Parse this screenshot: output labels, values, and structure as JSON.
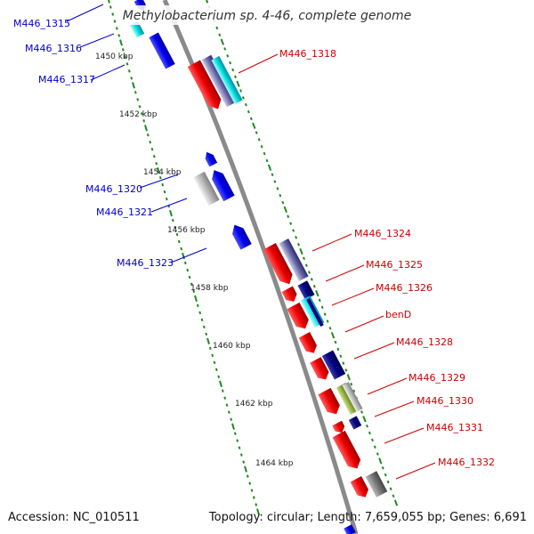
{
  "title": "Methylobacterium sp. 4-46, complete genome",
  "footer": {
    "accession": "Accession: NC_010511",
    "summary": "Topology: circular; Length: 7,659,055 bp; Genes: 6,691"
  },
  "colors": {
    "backbone": "#8a8a8a",
    "scale_dots": "#1f8a1f",
    "left_label": "#0000cc",
    "right_label": "#cc0000"
  },
  "scale_ticks": [
    "1450 kbp",
    "1452 kbp",
    "1454 kbp",
    "1456 kbp",
    "1458 kbp",
    "1460 kbp",
    "1462 kbp",
    "1464 kbp"
  ],
  "left_genes": [
    "M446_1315",
    "M446_1316",
    "M446_1317",
    "M446_1320",
    "M446_1321",
    "M446_1323"
  ],
  "right_genes": [
    "M446_1318",
    "M446_1324",
    "M446_1325",
    "M446_1326",
    "benD",
    "M446_1328",
    "M446_1329",
    "M446_1330",
    "M446_1331",
    "M446_1332"
  ]
}
